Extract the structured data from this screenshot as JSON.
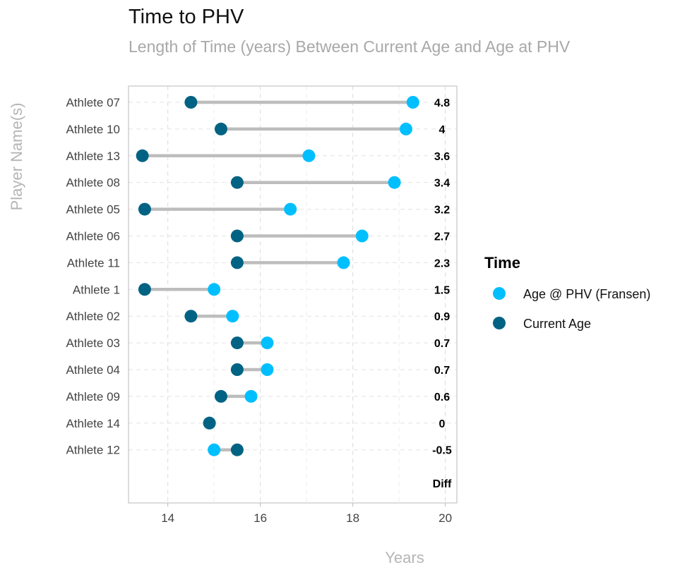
{
  "title": "Time to PHV",
  "subtitle": "Length of Time (years) Between Current Age and Age at PHV",
  "chart_data": {
    "type": "dumbbell",
    "title": "Time to PHV",
    "subtitle": "Length of Time (years) Between Current Age and Age at PHV",
    "xlabel": "Years",
    "ylabel": "Player Name(s)",
    "xlim": [
      13.15,
      20.25
    ],
    "xticks": [
      14,
      16,
      18,
      20
    ],
    "grid": true,
    "legend_position": "right",
    "legend_title": "Time",
    "diff_label": "Diff",
    "series": [
      {
        "name": "Age @ PHV (Fransen)",
        "color": "#00BFFF"
      },
      {
        "name": "Current Age",
        "color": "#006383"
      }
    ],
    "rows": [
      {
        "athlete": "Athlete 07",
        "current_age": 14.5,
        "phv_age": 19.3,
        "diff": "4.8"
      },
      {
        "athlete": "Athlete 10",
        "current_age": 15.15,
        "phv_age": 19.15,
        "diff": "4"
      },
      {
        "athlete": "Athlete 13",
        "current_age": 13.45,
        "phv_age": 17.05,
        "diff": "3.6"
      },
      {
        "athlete": "Athlete 08",
        "current_age": 15.5,
        "phv_age": 18.9,
        "diff": "3.4"
      },
      {
        "athlete": "Athlete 05",
        "current_age": 13.5,
        "phv_age": 16.65,
        "diff": "3.2"
      },
      {
        "athlete": "Athlete 06",
        "current_age": 15.5,
        "phv_age": 18.2,
        "diff": "2.7"
      },
      {
        "athlete": "Athlete 11",
        "current_age": 15.5,
        "phv_age": 17.8,
        "diff": "2.3"
      },
      {
        "athlete": "Athlete 1",
        "current_age": 13.5,
        "phv_age": 15.0,
        "diff": "1.5"
      },
      {
        "athlete": "Athlete 02",
        "current_age": 14.5,
        "phv_age": 15.4,
        "diff": "0.9"
      },
      {
        "athlete": "Athlete 03",
        "current_age": 15.5,
        "phv_age": 16.15,
        "diff": "0.7"
      },
      {
        "athlete": "Athlete 04",
        "current_age": 15.5,
        "phv_age": 16.15,
        "diff": "0.7"
      },
      {
        "athlete": "Athlete 09",
        "current_age": 15.15,
        "phv_age": 15.8,
        "diff": "0.6"
      },
      {
        "athlete": "Athlete 14",
        "current_age": 14.9,
        "phv_age": 14.9,
        "diff": "0"
      },
      {
        "athlete": "Athlete 12",
        "current_age": 15.5,
        "phv_age": 15.0,
        "diff": "-0.5"
      }
    ]
  }
}
